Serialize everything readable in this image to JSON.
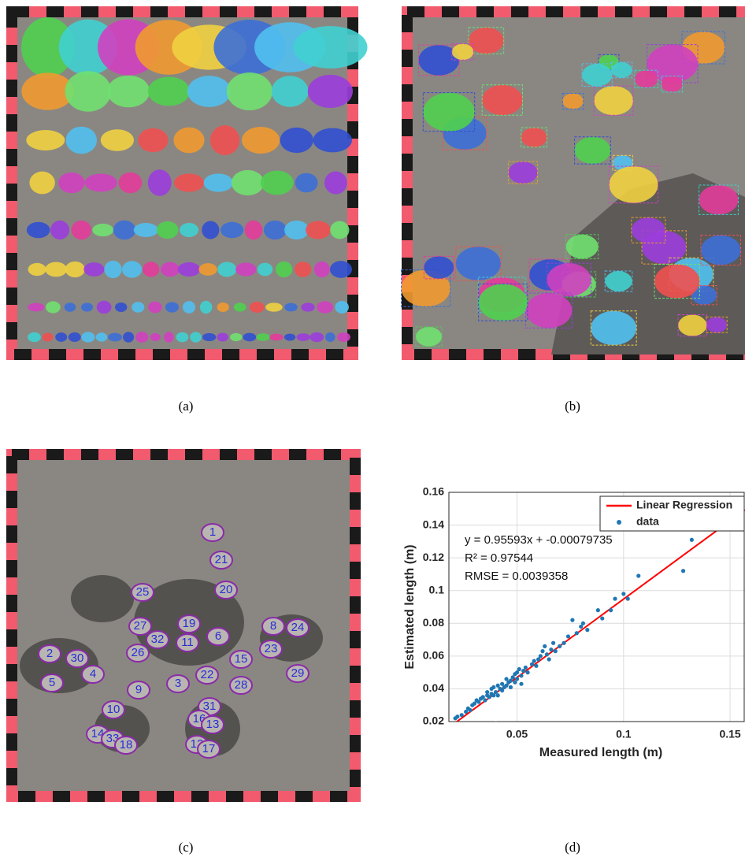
{
  "panels": [
    "(a)",
    "(b)",
    "(c)",
    "(d)"
  ],
  "panel_c": {
    "labels": [
      "1",
      "21",
      "25",
      "20",
      "27",
      "19",
      "6",
      "32",
      "11",
      "26",
      "30",
      "2",
      "8",
      "24",
      "23",
      "29",
      "15",
      "4",
      "5",
      "22",
      "28",
      "3",
      "9",
      "10",
      "31",
      "16",
      "13",
      "14",
      "33",
      "18",
      "12",
      "17"
    ]
  },
  "chart_data": {
    "type": "scatter",
    "xlabel": "Measured length (m)",
    "ylabel": "Estimated length (m)",
    "annotations": [
      "y = 0.95593x + -0.00079735",
      "R² = 0.97544",
      "RMSE = 0.0039358"
    ],
    "xlim": [
      0.018,
      0.157
    ],
    "ylim": [
      0.02,
      0.16
    ],
    "xticks": [
      0.05,
      0.1,
      0.15
    ],
    "yticks": [
      0.02,
      0.04,
      0.06,
      0.08,
      0.1,
      0.12,
      0.14,
      0.16
    ],
    "grid": true,
    "legend": "upper right",
    "series": [
      {
        "name": "Linear Regression",
        "color": "#ff0000",
        "kind": "line",
        "x": [
          0.018,
          0.157
        ],
        "values": [
          0.0164,
          0.1493
        ]
      },
      {
        "name": "data",
        "color": "#1f77b4",
        "kind": "scatter",
        "x": [
          0.021,
          0.022,
          0.024,
          0.026,
          0.027,
          0.028,
          0.029,
          0.03,
          0.031,
          0.032,
          0.033,
          0.034,
          0.035,
          0.036,
          0.036,
          0.037,
          0.038,
          0.038,
          0.039,
          0.039,
          0.04,
          0.04,
          0.041,
          0.041,
          0.042,
          0.043,
          0.043,
          0.044,
          0.045,
          0.045,
          0.046,
          0.047,
          0.047,
          0.048,
          0.049,
          0.049,
          0.05,
          0.05,
          0.051,
          0.052,
          0.052,
          0.053,
          0.054,
          0.055,
          0.057,
          0.058,
          0.059,
          0.06,
          0.061,
          0.062,
          0.063,
          0.064,
          0.065,
          0.066,
          0.067,
          0.068,
          0.07,
          0.072,
          0.074,
          0.076,
          0.078,
          0.08,
          0.081,
          0.083,
          0.088,
          0.09,
          0.094,
          0.096,
          0.099,
          0.1,
          0.102,
          0.107,
          0.128,
          0.132
        ],
        "values": [
          0.022,
          0.023,
          0.024,
          0.026,
          0.028,
          0.027,
          0.03,
          0.031,
          0.033,
          0.032,
          0.034,
          0.035,
          0.033,
          0.036,
          0.038,
          0.035,
          0.037,
          0.04,
          0.036,
          0.041,
          0.019,
          0.038,
          0.042,
          0.036,
          0.04,
          0.043,
          0.039,
          0.041,
          0.042,
          0.046,
          0.044,
          0.045,
          0.041,
          0.047,
          0.049,
          0.044,
          0.05,
          0.046,
          0.052,
          0.048,
          0.043,
          0.051,
          0.053,
          0.05,
          0.055,
          0.057,
          0.054,
          0.058,
          0.06,
          0.063,
          0.066,
          0.061,
          0.058,
          0.064,
          0.068,
          0.063,
          0.066,
          0.068,
          0.072,
          0.082,
          0.074,
          0.078,
          0.08,
          0.076,
          0.088,
          0.083,
          0.088,
          0.095,
          0.141,
          0.098,
          0.095,
          0.109,
          0.112,
          0.131
        ]
      }
    ]
  }
}
